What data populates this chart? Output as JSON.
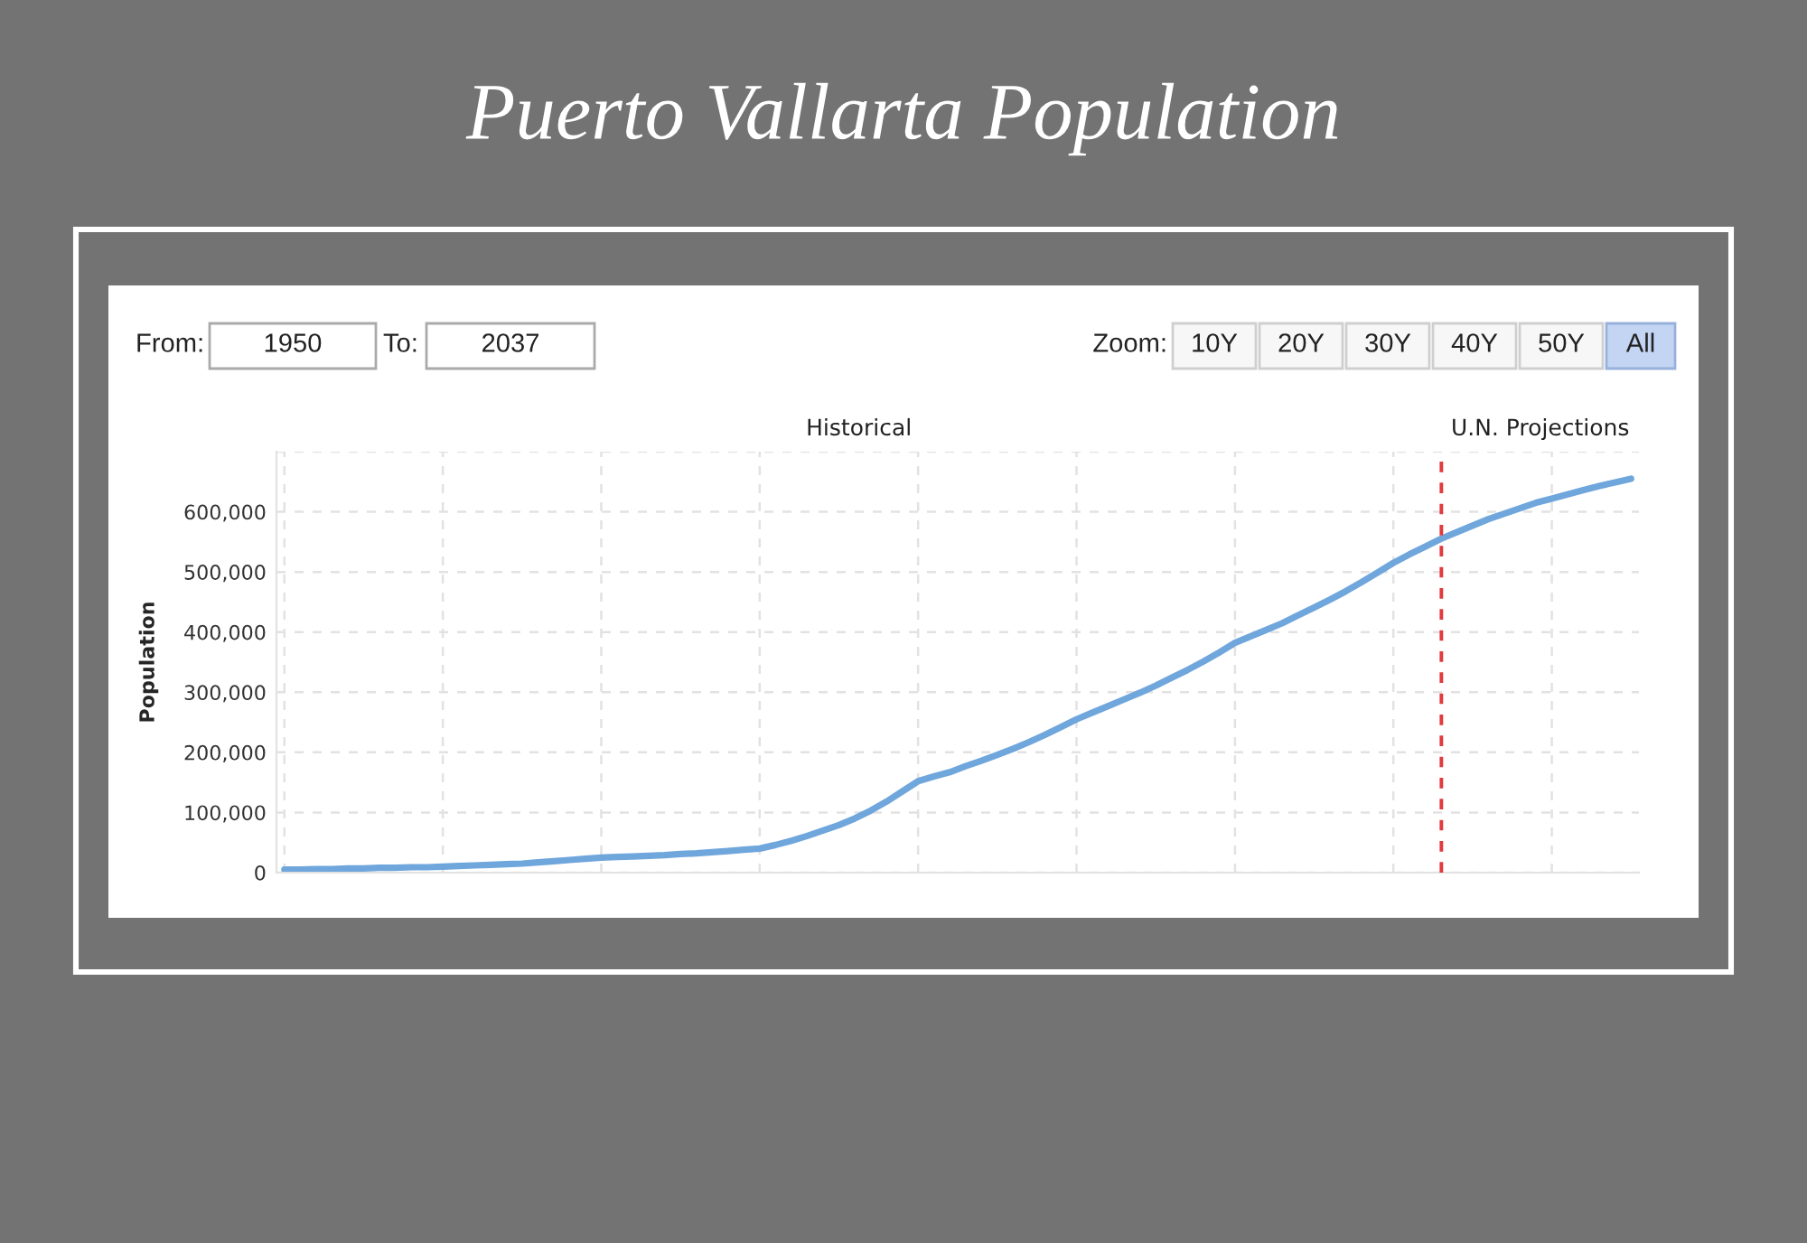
{
  "chart_data": {
    "type": "line",
    "title": "Puerto Vallarta Population",
    "ylabel": "Population",
    "annotations": [
      "Historical",
      "U.N. Projections",
      "From:",
      "1950",
      "To:",
      "2037",
      "Zoom:",
      "10Y",
      "20Y",
      "30Y",
      "40Y",
      "50Y",
      "All"
    ],
    "categories": [
      null,
      null,
      null,
      null,
      null,
      null,
      null,
      null,
      null,
      null,
      null,
      null,
      null,
      null,
      null,
      null,
      null,
      null,
      null,
      null,
      null,
      null,
      null,
      null,
      null,
      null,
      null,
      null,
      null,
      null,
      null,
      null,
      null,
      null,
      null,
      null,
      null,
      null,
      null,
      null,
      null,
      null,
      null,
      null,
      null,
      null,
      null,
      null,
      null,
      null,
      null,
      null,
      null,
      null,
      null,
      null,
      null,
      null,
      null,
      null,
      null,
      null,
      null,
      null,
      null,
      null,
      null,
      null,
      null,
      null,
      null,
      null,
      null,
      null,
      null,
      null,
      null,
      null,
      null,
      null,
      null,
      null,
      null,
      null,
      null,
      null
    ],
    "series": [
      {
        "color": "#6fa6dc",
        "values": [
          5000,
          5000,
          6000,
          6000,
          7000,
          7000,
          8000,
          8000,
          9000,
          9000,
          10000,
          11000,
          12000,
          13000,
          14000,
          15000,
          17000,
          19000,
          21000,
          23000,
          25000,
          26000,
          27000,
          28000,
          29000,
          31000,
          32000,
          34000,
          36000,
          38000,
          40000,
          46000,
          53000,
          61000,
          70000,
          79000,
          90000,
          103000,
          118000,
          135000,
          152000,
          160000,
          167000,
          177000,
          186000,
          196000,
          206000,
          217000,
          229000,
          242000,
          255000,
          266000,
          277000,
          288000,
          299000,
          311000,
          324000,
          337000,
          351000,
          366000,
          382000,
          393000,
          404000,
          415000,
          428000,
          441000,
          454000,
          468000,
          483000,
          499000,
          515000,
          529000,
          542000,
          555000,
          566000,
          577000,
          588000,
          597000,
          606000,
          615000,
          622000,
          629000,
          636000,
          643000,
          649000,
          655000
        ]
      }
    ],
    "ylim": [
      0,
      700000
    ],
    "yticks": [
      0,
      {
        "value": 100000,
        "label": "100,000"
      },
      {
        "value": 200000,
        "label": "200,000"
      },
      {
        "value": 300000,
        "label": "300,000"
      },
      {
        "value": 400000,
        "label": "400,000"
      },
      {
        "value": 500000,
        "label": "500,000"
      },
      {
        "value": 600000,
        "label": "600,000"
      },
      {
        "value": 700000,
        "label": null
      }
    ],
    "grid": true,
    "tick_labels": "y",
    "line_style": "solid"
  }
}
